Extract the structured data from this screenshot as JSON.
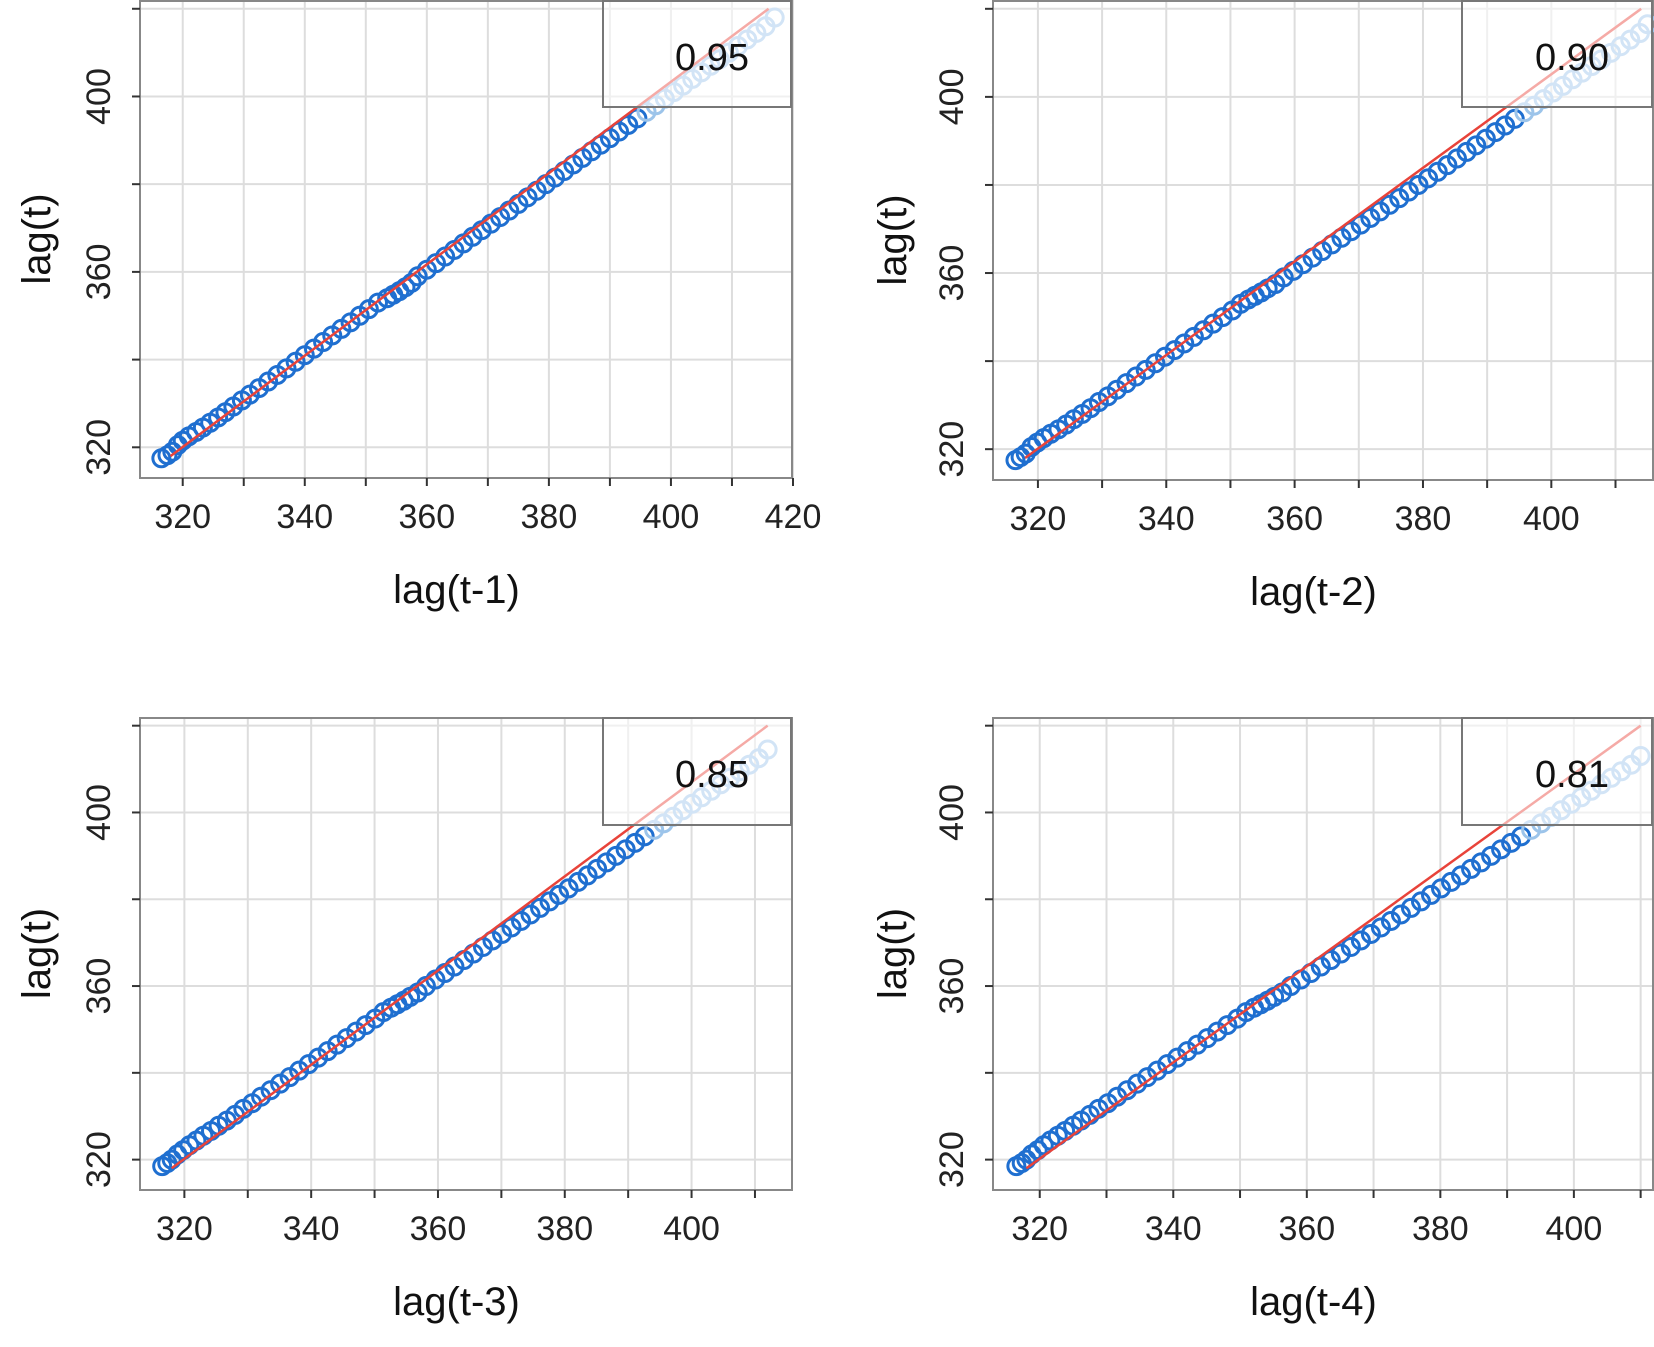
{
  "chart_data": [
    {
      "type": "scatter",
      "title": "",
      "xlabel": "lag(t-1)",
      "ylabel": "lag(t)",
      "annotation": "0.95",
      "xlim": [
        313,
        420
      ],
      "ylim": [
        313,
        422
      ],
      "xticks": [
        320,
        340,
        360,
        380,
        400,
        420
      ],
      "yticks": [
        320,
        360,
        400
      ],
      "grid": true,
      "fit_line": {
        "x": [
          318,
          416
        ],
        "y": [
          318,
          420
        ]
      },
      "series": [
        {
          "x": [
            316.5,
            317.5,
            318.3,
            319.2,
            320.0,
            321.0,
            322.2,
            323.3,
            324.5,
            325.8,
            327.0,
            328.3,
            329.7,
            331.0,
            332.5,
            334.0,
            335.5,
            337.0,
            338.5,
            340.0,
            341.5,
            343.0,
            344.5,
            346.0,
            347.5,
            349.0,
            350.5,
            352.0,
            353.5,
            354.5,
            355.5,
            356.5,
            357.5,
            358.5,
            360.0,
            361.5,
            363.0,
            364.5,
            366.0,
            367.5,
            369.0,
            370.5,
            372.0,
            373.5,
            375.0,
            376.5,
            378.0,
            379.5,
            381.0,
            382.5,
            384.0,
            385.5,
            387.0,
            388.5,
            390.0,
            391.5,
            393.0,
            394.5,
            396.0,
            397.5,
            399.0,
            400.5,
            402.0,
            403.5,
            405.0,
            406.5,
            408.0,
            409.5,
            411.0,
            412.5,
            414.0,
            415.5,
            417.0
          ],
          "y": [
            317.5,
            318.2,
            319.0,
            320.5,
            321.5,
            322.5,
            323.5,
            324.5,
            325.6,
            326.8,
            328.0,
            329.3,
            330.7,
            332.0,
            333.5,
            335.0,
            336.5,
            338.0,
            339.5,
            341.0,
            342.5,
            344.0,
            345.5,
            347.0,
            348.5,
            350.0,
            351.5,
            353.0,
            354.0,
            354.8,
            355.6,
            356.5,
            357.5,
            359.0,
            360.5,
            362.0,
            363.5,
            365.0,
            366.5,
            368.0,
            369.5,
            371.0,
            372.5,
            374.0,
            375.5,
            377.0,
            378.5,
            380.0,
            381.5,
            383.0,
            384.5,
            386.0,
            387.5,
            389.0,
            390.5,
            392.0,
            393.5,
            395.0,
            396.5,
            398.0,
            399.5,
            401.0,
            402.5,
            404.0,
            405.5,
            407.0,
            408.5,
            410.0,
            411.5,
            413.0,
            414.5,
            416.0,
            418.0
          ]
        }
      ]
    },
    {
      "type": "scatter",
      "title": "",
      "xlabel": "lag(t-2)",
      "ylabel": "lag(t)",
      "annotation": "0.90",
      "xlim": [
        313,
        416
      ],
      "ylim": [
        313,
        422
      ],
      "xticks": [
        320,
        340,
        360,
        380,
        400
      ],
      "yticks": [
        320,
        360,
        400
      ],
      "grid": true,
      "fit_line": {
        "x": [
          318,
          414
        ],
        "y": [
          318,
          420
        ]
      },
      "series": [
        {
          "x": [
            316.5,
            317.3,
            318.1,
            319.0,
            319.9,
            320.9,
            322.0,
            323.2,
            324.4,
            325.6,
            326.9,
            328.2,
            329.5,
            330.9,
            332.3,
            333.8,
            335.3,
            336.8,
            338.3,
            339.8,
            341.3,
            342.8,
            344.3,
            345.8,
            347.3,
            348.8,
            350.3,
            351.6,
            352.8,
            353.8,
            354.8,
            355.8,
            357.0,
            358.3,
            359.8,
            361.3,
            362.8,
            364.3,
            365.8,
            367.3,
            368.8,
            370.3,
            371.8,
            373.3,
            374.8,
            376.3,
            377.8,
            379.3,
            380.8,
            382.3,
            383.8,
            385.3,
            386.8,
            388.3,
            389.8,
            391.3,
            392.8,
            394.3,
            395.8,
            397.3,
            398.8,
            400.3,
            401.8,
            403.3,
            404.8,
            406.3,
            407.8,
            409.3,
            410.8,
            412.3,
            413.8,
            415.0
          ],
          "y": [
            317.5,
            318.2,
            319.0,
            320.5,
            321.5,
            322.5,
            323.5,
            324.5,
            325.6,
            326.8,
            328.0,
            329.3,
            330.7,
            332.0,
            333.5,
            335.0,
            336.5,
            338.0,
            339.5,
            341.0,
            342.5,
            344.0,
            345.5,
            347.0,
            348.5,
            350.0,
            351.5,
            353.0,
            354.0,
            354.8,
            355.6,
            356.5,
            357.5,
            359.0,
            360.5,
            362.0,
            363.5,
            365.0,
            366.5,
            368.0,
            369.5,
            371.0,
            372.5,
            374.0,
            375.5,
            377.0,
            378.5,
            380.0,
            381.5,
            383.0,
            384.5,
            386.0,
            387.5,
            389.0,
            390.5,
            392.0,
            393.5,
            395.0,
            396.5,
            398.0,
            399.5,
            401.0,
            402.5,
            404.0,
            405.5,
            407.0,
            408.5,
            410.0,
            411.5,
            413.0,
            414.5,
            416.5
          ]
        }
      ]
    },
    {
      "type": "scatter",
      "title": "",
      "xlabel": "lag(t-3)",
      "ylabel": "lag(t)",
      "annotation": "0.85",
      "xlim": [
        313,
        416
      ],
      "ylim": [
        313,
        422
      ],
      "xticks": [
        320,
        340,
        360,
        380,
        400
      ],
      "yticks": [
        320,
        360,
        400
      ],
      "grid": true,
      "fit_line": {
        "x": [
          318,
          412
        ],
        "y": [
          318,
          420
        ]
      },
      "series": [
        {
          "x": [
            316.5,
            317.3,
            318.0,
            318.9,
            319.8,
            320.8,
            321.9,
            323.0,
            324.2,
            325.4,
            326.7,
            328.0,
            329.3,
            330.7,
            332.1,
            333.6,
            335.1,
            336.6,
            338.1,
            339.6,
            341.1,
            342.6,
            344.1,
            345.6,
            347.1,
            348.6,
            350.1,
            351.4,
            352.6,
            353.6,
            354.6,
            355.6,
            356.8,
            358.1,
            359.6,
            361.1,
            362.6,
            364.1,
            365.6,
            367.1,
            368.6,
            370.1,
            371.6,
            373.1,
            374.6,
            376.1,
            377.6,
            379.1,
            380.6,
            382.1,
            383.6,
            385.1,
            386.6,
            388.1,
            389.6,
            391.1,
            392.6,
            394.1,
            395.6,
            397.1,
            398.6,
            400.1,
            401.6,
            403.1,
            404.6,
            406.1,
            407.6,
            409.1,
            410.6,
            412.0
          ],
          "y": [
            318.5,
            319.2,
            320.0,
            321.2,
            322.2,
            323.3,
            324.4,
            325.5,
            326.6,
            327.8,
            329.0,
            330.3,
            331.7,
            333.0,
            334.5,
            336.0,
            337.5,
            339.0,
            340.5,
            342.0,
            343.5,
            345.0,
            346.5,
            348.0,
            349.5,
            351.0,
            352.5,
            354.0,
            355.0,
            355.8,
            356.6,
            357.5,
            358.5,
            360.0,
            361.5,
            363.0,
            364.5,
            366.0,
            367.5,
            369.0,
            370.5,
            372.0,
            373.5,
            375.0,
            376.5,
            378.0,
            379.5,
            381.0,
            382.5,
            384.0,
            385.5,
            387.0,
            388.5,
            390.0,
            391.5,
            393.0,
            394.5,
            396.0,
            397.5,
            399.0,
            400.5,
            402.0,
            403.5,
            405.0,
            406.5,
            408.0,
            409.5,
            411.0,
            412.5,
            414.5
          ]
        }
      ]
    },
    {
      "type": "scatter",
      "title": "",
      "xlabel": "lag(t-4)",
      "ylabel": "lag(t)",
      "annotation": "0.81",
      "xlim": [
        313,
        412
      ],
      "ylim": [
        313,
        422
      ],
      "xticks": [
        320,
        340,
        360,
        380,
        400
      ],
      "yticks": [
        320,
        360,
        400
      ],
      "grid": true,
      "fit_line": {
        "x": [
          318,
          410
        ],
        "y": [
          318,
          420
        ]
      },
      "series": [
        {
          "x": [
            316.5,
            317.3,
            318.0,
            318.8,
            319.7,
            320.6,
            321.6,
            322.7,
            323.8,
            325.0,
            326.2,
            327.5,
            328.8,
            330.2,
            331.6,
            333.1,
            334.6,
            336.1,
            337.6,
            339.1,
            340.6,
            342.1,
            343.6,
            345.1,
            346.6,
            348.1,
            349.6,
            350.9,
            352.1,
            353.1,
            354.1,
            355.1,
            356.3,
            357.6,
            359.1,
            360.6,
            362.1,
            363.6,
            365.1,
            366.6,
            368.1,
            369.6,
            371.1,
            372.6,
            374.1,
            375.6,
            377.1,
            378.6,
            380.1,
            381.6,
            383.1,
            384.6,
            386.1,
            387.6,
            389.1,
            390.6,
            392.1,
            393.6,
            395.1,
            396.6,
            398.1,
            399.6,
            401.1,
            402.6,
            404.1,
            405.6,
            407.1,
            408.6,
            410.0
          ],
          "y": [
            318.5,
            319.2,
            320.0,
            321.2,
            322.2,
            323.3,
            324.4,
            325.5,
            326.6,
            327.8,
            329.0,
            330.3,
            331.7,
            333.0,
            334.5,
            336.0,
            337.5,
            339.0,
            340.5,
            342.0,
            343.5,
            345.0,
            346.5,
            348.0,
            349.5,
            351.0,
            352.5,
            354.0,
            355.0,
            355.8,
            356.6,
            357.5,
            358.5,
            360.0,
            361.5,
            363.0,
            364.5,
            366.0,
            367.5,
            369.0,
            370.5,
            372.0,
            373.5,
            375.0,
            376.5,
            378.0,
            379.5,
            381.0,
            382.5,
            384.0,
            385.5,
            387.0,
            388.5,
            390.0,
            391.5,
            393.0,
            394.5,
            396.0,
            397.5,
            399.0,
            400.5,
            402.0,
            403.5,
            405.0,
            406.5,
            408.0,
            409.5,
            411.0,
            413.0
          ]
        }
      ]
    }
  ],
  "colors": {
    "point": "#1f6fd0",
    "point_faded": "#9cc4ea",
    "fit_line": "#e8433a",
    "grid": "#dddddd",
    "frame": "#888888",
    "legend_border": "#777777"
  }
}
